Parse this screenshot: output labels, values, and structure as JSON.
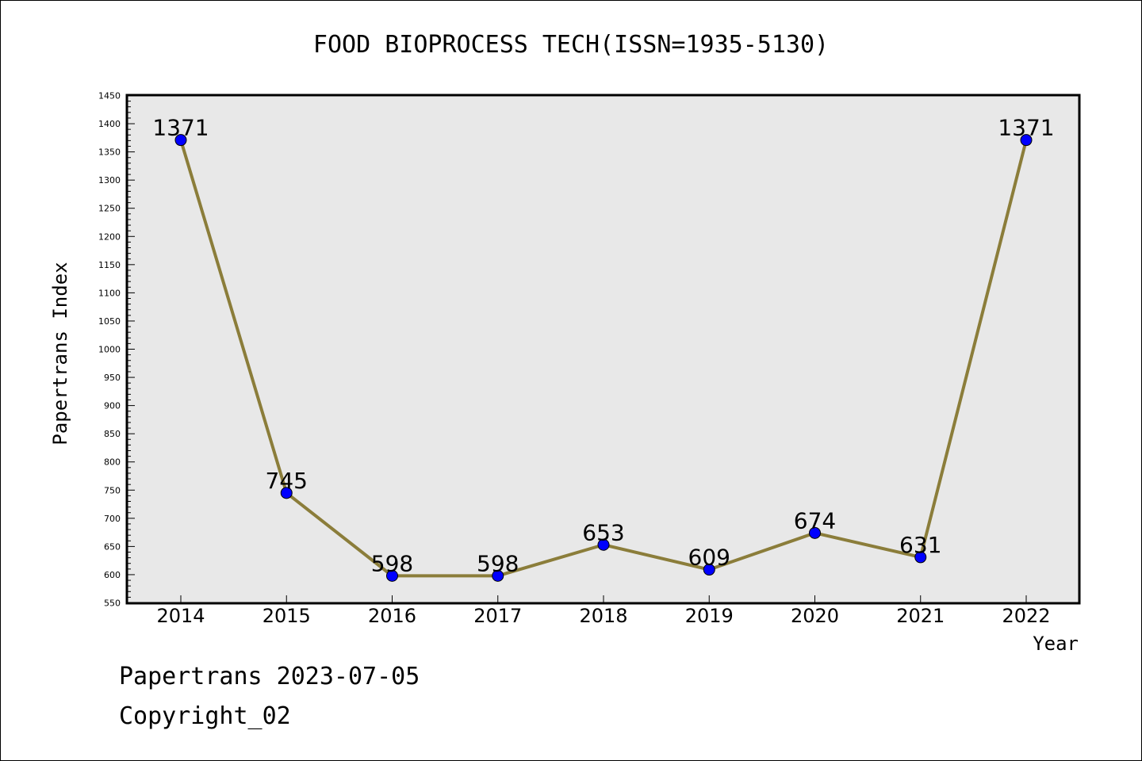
{
  "chart_data": {
    "type": "line",
    "title": "FOOD BIOPROCESS TECH(ISSN=1935-5130)",
    "xlabel": "Year",
    "ylabel": "Papertrans Index",
    "categories": [
      "2014",
      "2015",
      "2016",
      "2017",
      "2018",
      "2019",
      "2020",
      "2021",
      "2022"
    ],
    "series": [
      {
        "values": [
          1371,
          745,
          598,
          598,
          653,
          609,
          674,
          631,
          1371
        ]
      }
    ],
    "ylim": [
      550,
      1450
    ],
    "y_major_step": 50,
    "y_minor_step": 10,
    "grid": false,
    "data_labels": true,
    "colors": {
      "plot_background": "#e8e8e8",
      "line": "#8b7d3a",
      "marker": "#0000ff",
      "marker_edge": "#000000"
    }
  },
  "footer": {
    "line1": "Papertrans 2023-07-05",
    "line2": "Copyright_02"
  }
}
